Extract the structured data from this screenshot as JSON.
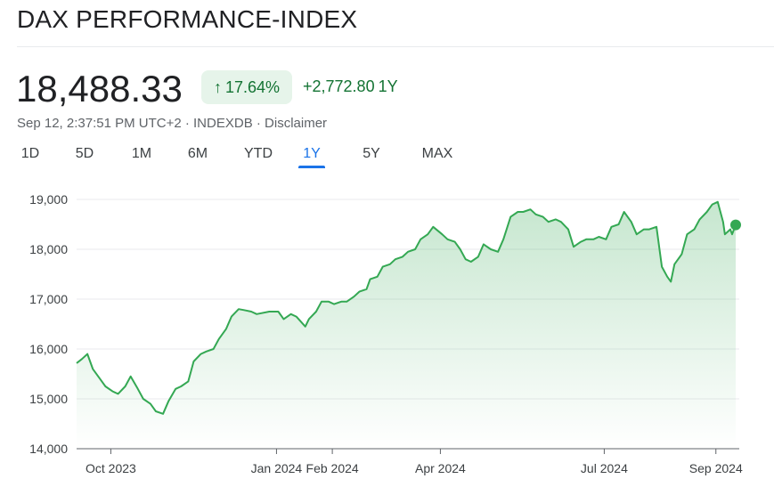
{
  "header": {
    "title": "DAX PERFORMANCE-INDEX",
    "price": "18,488.33",
    "change_percent": "17.64%",
    "change_percent_icon": "arrow-up-icon",
    "change_abs": "+2,772.80",
    "change_period": "1Y",
    "meta": "Sep 12, 2:37:51 PM UTC+2 · INDEXDB · Disclaimer"
  },
  "tabs": [
    {
      "label": "1D",
      "active": false
    },
    {
      "label": "5D",
      "active": false
    },
    {
      "label": "1M",
      "active": false
    },
    {
      "label": "6M",
      "active": false
    },
    {
      "label": "YTD",
      "active": false
    },
    {
      "label": "1Y",
      "active": true
    },
    {
      "label": "5Y",
      "active": false
    },
    {
      "label": "MAX",
      "active": false
    }
  ],
  "colors": {
    "line": "#34a853",
    "positive_text": "#137333",
    "positive_chip_bg": "#e6f4ea",
    "active_tab": "#1a73e8",
    "grid": "#e8eaed"
  },
  "chart_data": {
    "type": "area",
    "xlabel": "",
    "ylabel": "",
    "ylim": [
      14000,
      19000
    ],
    "y_ticks": [
      14000,
      15000,
      16000,
      17000,
      18000,
      19000
    ],
    "y_tick_labels": [
      "14,000",
      "15,000",
      "16,000",
      "17,000",
      "18,000",
      "19,000"
    ],
    "x_tick_labels": [
      "Oct 2023",
      "Jan 2024",
      "Feb 2024",
      "Apr 2024",
      "Jul 2024",
      "Sep 2024"
    ],
    "x_tick_dates": [
      "2023-10-01",
      "2024-01-01",
      "2024-02-01",
      "2024-04-01",
      "2024-07-01",
      "2024-09-01"
    ],
    "grid": true,
    "series": [
      {
        "values": [
          [
            "2023-09-12",
            15715
          ],
          [
            "2023-09-15",
            15800
          ],
          [
            "2023-09-18",
            15900
          ],
          [
            "2023-09-21",
            15600
          ],
          [
            "2023-09-25",
            15400
          ],
          [
            "2023-09-28",
            15250
          ],
          [
            "2023-10-02",
            15150
          ],
          [
            "2023-10-05",
            15100
          ],
          [
            "2023-10-09",
            15250
          ],
          [
            "2023-10-12",
            15450
          ],
          [
            "2023-10-16",
            15200
          ],
          [
            "2023-10-19",
            15000
          ],
          [
            "2023-10-23",
            14900
          ],
          [
            "2023-10-26",
            14750
          ],
          [
            "2023-10-30",
            14700
          ],
          [
            "2023-11-02",
            14950
          ],
          [
            "2023-11-06",
            15200
          ],
          [
            "2023-11-09",
            15250
          ],
          [
            "2023-11-13",
            15350
          ],
          [
            "2023-11-16",
            15750
          ],
          [
            "2023-11-20",
            15900
          ],
          [
            "2023-11-23",
            15950
          ],
          [
            "2023-11-27",
            16000
          ],
          [
            "2023-11-30",
            16200
          ],
          [
            "2023-12-04",
            16400
          ],
          [
            "2023-12-07",
            16650
          ],
          [
            "2023-12-11",
            16800
          ],
          [
            "2023-12-14",
            16780
          ],
          [
            "2023-12-18",
            16750
          ],
          [
            "2023-12-21",
            16700
          ],
          [
            "2023-12-28",
            16750
          ],
          [
            "2024-01-02",
            16750
          ],
          [
            "2024-01-05",
            16600
          ],
          [
            "2024-01-09",
            16700
          ],
          [
            "2024-01-12",
            16650
          ],
          [
            "2024-01-17",
            16450
          ],
          [
            "2024-01-19",
            16600
          ],
          [
            "2024-01-23",
            16750
          ],
          [
            "2024-01-26",
            16950
          ],
          [
            "2024-01-30",
            16950
          ],
          [
            "2024-02-02",
            16900
          ],
          [
            "2024-02-06",
            16950
          ],
          [
            "2024-02-09",
            16950
          ],
          [
            "2024-02-13",
            17050
          ],
          [
            "2024-02-16",
            17150
          ],
          [
            "2024-02-20",
            17200
          ],
          [
            "2024-02-22",
            17400
          ],
          [
            "2024-02-26",
            17450
          ],
          [
            "2024-02-29",
            17650
          ],
          [
            "2024-03-04",
            17700
          ],
          [
            "2024-03-07",
            17800
          ],
          [
            "2024-03-11",
            17850
          ],
          [
            "2024-03-14",
            17950
          ],
          [
            "2024-03-18",
            18000
          ],
          [
            "2024-03-21",
            18200
          ],
          [
            "2024-03-25",
            18300
          ],
          [
            "2024-03-28",
            18450
          ],
          [
            "2024-04-02",
            18300
          ],
          [
            "2024-04-05",
            18200
          ],
          [
            "2024-04-09",
            18150
          ],
          [
            "2024-04-12",
            18000
          ],
          [
            "2024-04-15",
            17800
          ],
          [
            "2024-04-18",
            17750
          ],
          [
            "2024-04-22",
            17850
          ],
          [
            "2024-04-25",
            18100
          ],
          [
            "2024-04-29",
            18000
          ],
          [
            "2024-05-03",
            17950
          ],
          [
            "2024-05-06",
            18200
          ],
          [
            "2024-05-10",
            18650
          ],
          [
            "2024-05-14",
            18750
          ],
          [
            "2024-05-17",
            18750
          ],
          [
            "2024-05-21",
            18800
          ],
          [
            "2024-05-24",
            18700
          ],
          [
            "2024-05-28",
            18650
          ],
          [
            "2024-05-31",
            18550
          ],
          [
            "2024-06-04",
            18600
          ],
          [
            "2024-06-07",
            18550
          ],
          [
            "2024-06-11",
            18400
          ],
          [
            "2024-06-14",
            18050
          ],
          [
            "2024-06-18",
            18150
          ],
          [
            "2024-06-21",
            18200
          ],
          [
            "2024-06-25",
            18200
          ],
          [
            "2024-06-28",
            18250
          ],
          [
            "2024-07-02",
            18200
          ],
          [
            "2024-07-05",
            18450
          ],
          [
            "2024-07-09",
            18500
          ],
          [
            "2024-07-12",
            18750
          ],
          [
            "2024-07-16",
            18550
          ],
          [
            "2024-07-19",
            18300
          ],
          [
            "2024-07-23",
            18400
          ],
          [
            "2024-07-26",
            18400
          ],
          [
            "2024-07-30",
            18450
          ],
          [
            "2024-08-02",
            17650
          ],
          [
            "2024-08-05",
            17450
          ],
          [
            "2024-08-07",
            17350
          ],
          [
            "2024-08-09",
            17700
          ],
          [
            "2024-08-13",
            17900
          ],
          [
            "2024-08-16",
            18300
          ],
          [
            "2024-08-20",
            18400
          ],
          [
            "2024-08-23",
            18600
          ],
          [
            "2024-08-27",
            18750
          ],
          [
            "2024-08-30",
            18900
          ],
          [
            "2024-09-02",
            18950
          ],
          [
            "2024-09-05",
            18550
          ],
          [
            "2024-09-06",
            18300
          ],
          [
            "2024-09-09",
            18400
          ],
          [
            "2024-09-10",
            18300
          ],
          [
            "2024-09-12",
            18488
          ]
        ]
      }
    ],
    "last_point": [
      "2024-09-12",
      18488.33
    ]
  }
}
